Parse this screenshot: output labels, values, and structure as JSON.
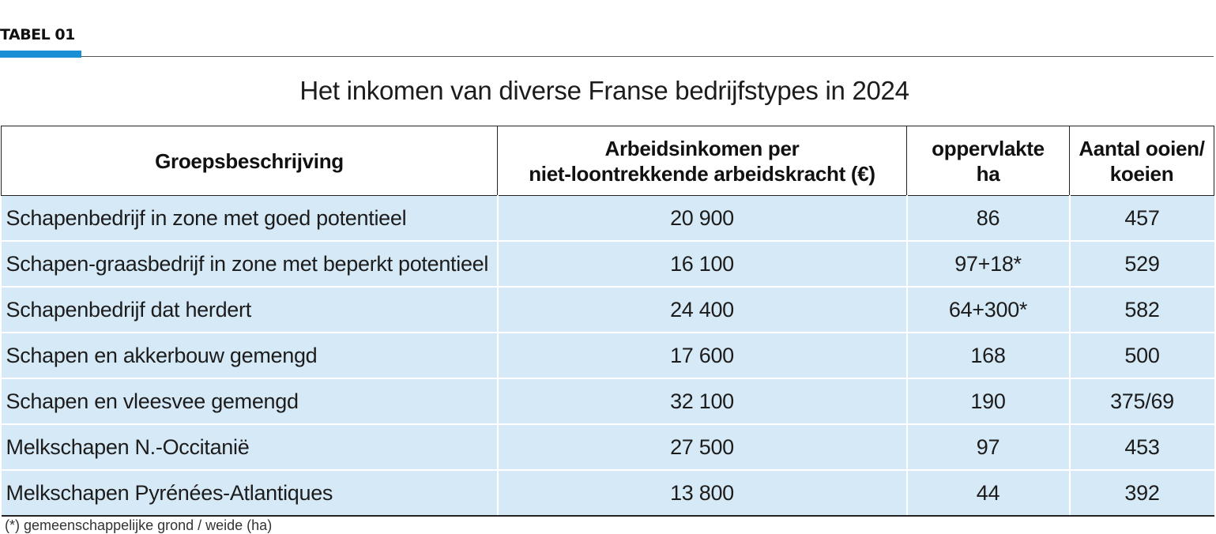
{
  "tag": "TABEL 01",
  "title": "Het inkomen van diverse Franse bedrijfstypes in 2024",
  "headers": {
    "group": "Groepsbeschrijving",
    "income_line1": "Arbeidsinkomen per",
    "income_line2": "niet-loontrekkende arbeidskracht (€)",
    "area_line1": "oppervlakte",
    "area_line2": "ha",
    "animals_line1": "Aantal ooien/",
    "animals_line2": "koeien"
  },
  "rows": [
    {
      "group": "Schapenbedrijf in zone met goed potentieel",
      "income": "20 900",
      "area": "86",
      "animals": "457"
    },
    {
      "group": "Schapen-graasbedrijf in zone met beperkt potentieel",
      "income": "16 100",
      "area": "97+18*",
      "animals": "529"
    },
    {
      "group": "Schapenbedrijf dat herdert",
      "income": "24 400",
      "area": "64+300*",
      "animals": "582"
    },
    {
      "group": "Schapen en akkerbouw gemengd",
      "income": "17 600",
      "area": "168",
      "animals": "500"
    },
    {
      "group": "Schapen en vleesvee gemengd",
      "income": "32 100",
      "area": "190",
      "animals": "375/69"
    },
    {
      "group": "Melkschapen N.-Occitanië",
      "income": "27 500",
      "area": "97",
      "animals": "453"
    },
    {
      "group": "Melkschapen Pyrénées-Atlantiques",
      "income": "13 800",
      "area": "44",
      "animals": "392"
    }
  ],
  "footnote": "(*) gemeenschappelijke grond / weide (ha)",
  "colors": {
    "accent": "#1a8fd6",
    "row_fill": "#d6e9f6"
  }
}
